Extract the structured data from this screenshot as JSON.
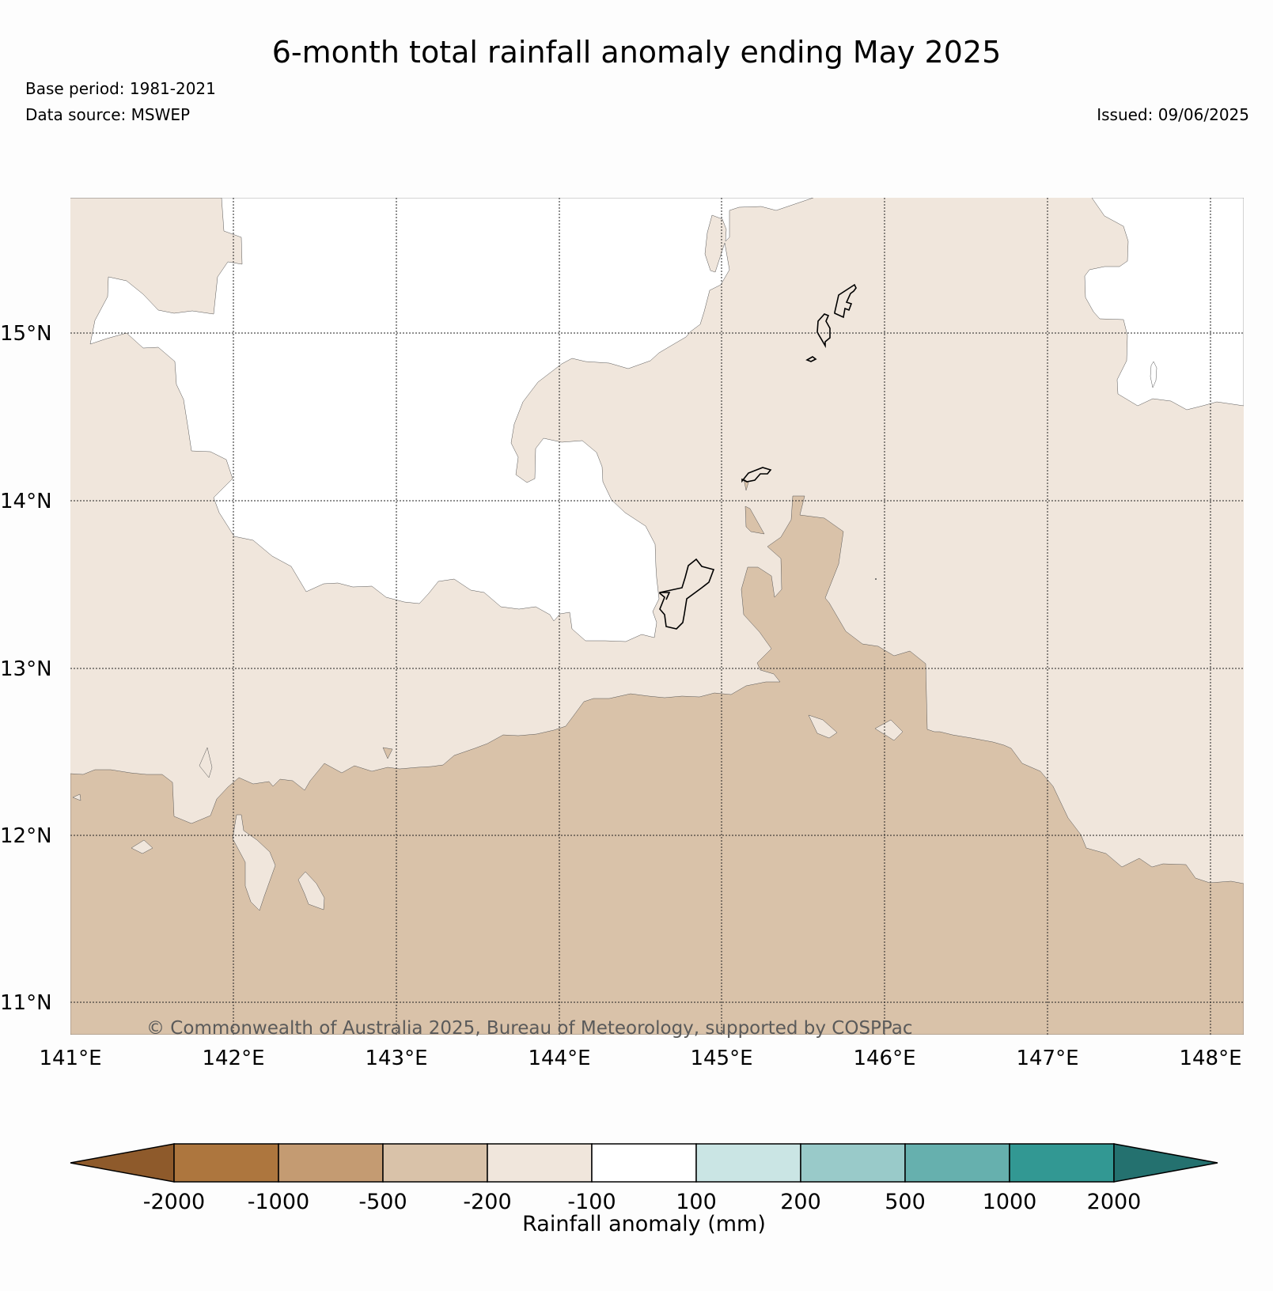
{
  "header": {
    "title": "6-month total rainfall anomaly ending May 2025",
    "base_period": "Base period: 1981-2021",
    "data_source": "Data source: MSWEP",
    "issued": "Issued: 09/06/2025"
  },
  "map": {
    "lat_ticks": [
      "15°N",
      "14°N",
      "13°N",
      "12°N",
      "11°N"
    ],
    "lon_ticks": [
      "141°E",
      "142°E",
      "143°E",
      "144°E",
      "145°E",
      "146°E",
      "147°E",
      "148°E"
    ],
    "copyright": "© Commonwealth of Australia 2025, Bureau of Meteorology, supported by COSPPac",
    "colors": {
      "anom_100_200_deficit": "#f0e6dc",
      "anom_200_500_deficit": "#d9c2a9",
      "neutral": "#ffffff"
    }
  },
  "colorbar": {
    "label": "Rainfall anomaly (mm)",
    "ticks": [
      "-2000",
      "-1000",
      "-500",
      "-200",
      "-100",
      "100",
      "200",
      "500",
      "1000",
      "2000"
    ],
    "colors": [
      "#8e5a2b",
      "#ad763e",
      "#c49b72",
      "#d9c2a9",
      "#f0e6dc",
      "#ffffff",
      "#cae5e4",
      "#99cac9",
      "#66b0ae",
      "#329893",
      "#24716f"
    ]
  }
}
